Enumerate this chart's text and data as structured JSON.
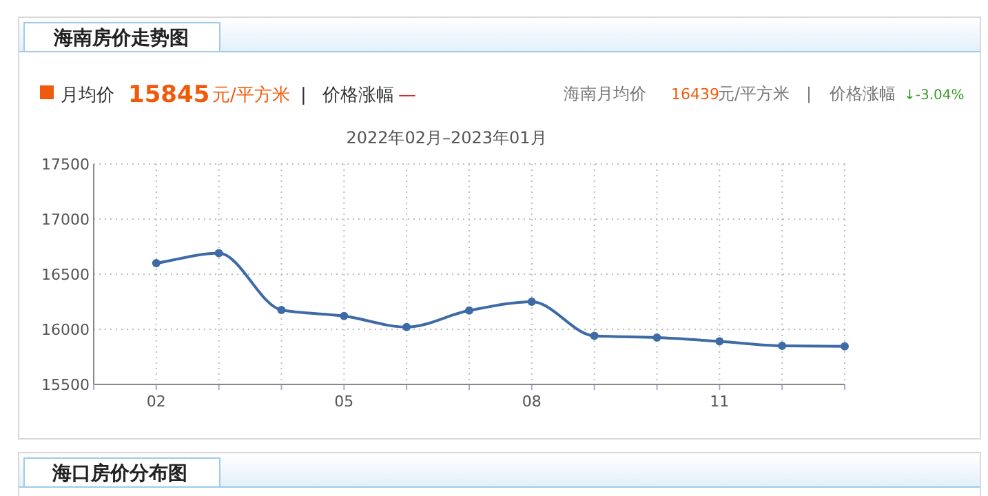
{
  "chart_data": {
    "type": "line",
    "title": "海南房价走势图",
    "subtitle": "2022年02月–2023年01月",
    "annotations": [
      "月均价",
      "15845",
      "元/平方米",
      "|",
      "价格涨幅",
      "—",
      "海南月均价",
      "16439",
      "元/平方米",
      "|",
      "价格涨幅",
      "↓-3.04%",
      "海口房价分布图"
    ],
    "categories": [
      "02",
      null,
      null,
      "05",
      null,
      null,
      "08",
      null,
      null,
      "11",
      null,
      null
    ],
    "series": [
      {
        "color": "#3e6ba6",
        "values": [
          16600,
          16690,
          16175,
          16120,
          16020,
          16170,
          16250,
          15940,
          15925,
          15890,
          15850,
          15845
        ]
      }
    ],
    "ylim": [
      15500,
      17500
    ],
    "yticks": [
      15500,
      16000,
      16500,
      17000,
      17500
    ],
    "grid": true,
    "marker": "circle"
  }
}
